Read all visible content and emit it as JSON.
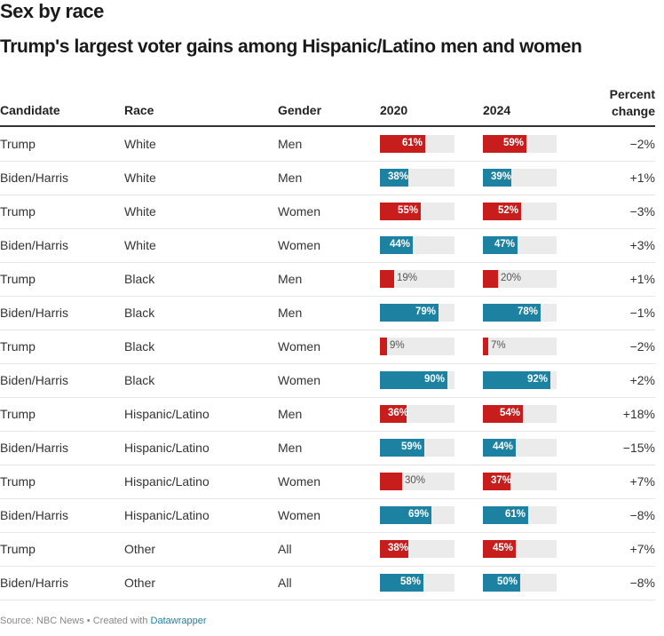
{
  "title": "Sex by race",
  "subtitle": "Trump's largest voter gains among Hispanic/Latino men and women",
  "colors": {
    "Trump": "#c71e1d",
    "Biden/Harris": "#1d81a2",
    "track": "#ebebeb"
  },
  "headers": {
    "candidate": "Candidate",
    "race": "Race",
    "gender": "Gender",
    "y2020": "2020",
    "y2024": "2024",
    "change_line1": "Percent",
    "change_line2": "change"
  },
  "footer": {
    "source": "Source: NBC News • Created with ",
    "link": "Datawrapper"
  },
  "chart_data": {
    "type": "table",
    "title": "Sex by race",
    "subtitle": "Trump's largest voter gains among Hispanic/Latino men and women",
    "columns": [
      "Candidate",
      "Race",
      "Gender",
      "2020",
      "2024",
      "Percent change"
    ],
    "bar_scale": [
      0,
      100
    ],
    "rows": [
      {
        "candidate": "Trump",
        "race": "White",
        "gender": "Men",
        "v2020": 61,
        "v2024": 59,
        "change": "−2%"
      },
      {
        "candidate": "Biden/Harris",
        "race": "White",
        "gender": "Men",
        "v2020": 38,
        "v2024": 39,
        "change": "+1%"
      },
      {
        "candidate": "Trump",
        "race": "White",
        "gender": "Women",
        "v2020": 55,
        "v2024": 52,
        "change": "−3%"
      },
      {
        "candidate": "Biden/Harris",
        "race": "White",
        "gender": "Women",
        "v2020": 44,
        "v2024": 47,
        "change": "+3%"
      },
      {
        "candidate": "Trump",
        "race": "Black",
        "gender": "Men",
        "v2020": 19,
        "v2024": 20,
        "change": "+1%"
      },
      {
        "candidate": "Biden/Harris",
        "race": "Black",
        "gender": "Men",
        "v2020": 79,
        "v2024": 78,
        "change": "−1%"
      },
      {
        "candidate": "Trump",
        "race": "Black",
        "gender": "Women",
        "v2020": 9,
        "v2024": 7,
        "change": "−2%"
      },
      {
        "candidate": "Biden/Harris",
        "race": "Black",
        "gender": "Women",
        "v2020": 90,
        "v2024": 92,
        "change": "+2%"
      },
      {
        "candidate": "Trump",
        "race": "Hispanic/Latino",
        "gender": "Men",
        "v2020": 36,
        "v2024": 54,
        "change": "+18%"
      },
      {
        "candidate": "Biden/Harris",
        "race": "Hispanic/Latino",
        "gender": "Men",
        "v2020": 59,
        "v2024": 44,
        "change": "−15%"
      },
      {
        "candidate": "Trump",
        "race": "Hispanic/Latino",
        "gender": "Women",
        "v2020": 30,
        "v2024": 37,
        "change": "+7%"
      },
      {
        "candidate": "Biden/Harris",
        "race": "Hispanic/Latino",
        "gender": "Women",
        "v2020": 69,
        "v2024": 61,
        "change": "−8%"
      },
      {
        "candidate": "Trump",
        "race": "Other",
        "gender": "All",
        "v2020": 38,
        "v2024": 45,
        "change": "+7%"
      },
      {
        "candidate": "Biden/Harris",
        "race": "Other",
        "gender": "All",
        "v2020": 58,
        "v2024": 50,
        "change": "−8%"
      }
    ]
  }
}
